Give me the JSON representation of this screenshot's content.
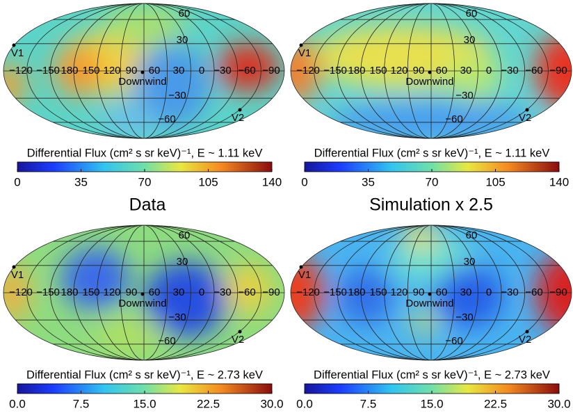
{
  "columns": [
    "Data",
    "Simulation x 2.5"
  ],
  "panels": [
    {
      "colorbar": {
        "label": "Differential Flux (cm² s sr keV)⁻¹, E ~ 1.11 keV",
        "lim": [
          0,
          140
        ],
        "ticks": [
          0,
          35,
          70,
          105,
          140
        ]
      },
      "markers": [
        "V1",
        "Downwind",
        "V2"
      ],
      "longitude_labels": [
        "−120",
        "−150",
        "180",
        "150",
        "120",
        "90",
        "60",
        "30",
        "0",
        "−30",
        "−60",
        "−90"
      ],
      "latitude_labels": [
        "60",
        "30",
        "−30",
        "−60"
      ]
    },
    {
      "colorbar": {
        "label": "Differential Flux (cm² s sr keV)⁻¹, E ~ 1.11 keV",
        "lim": [
          0,
          140
        ],
        "ticks": [
          0,
          35,
          70,
          105,
          140
        ]
      },
      "markers": [
        "V1",
        "Downwind",
        "V2"
      ],
      "longitude_labels": [
        "−120",
        "−150",
        "180",
        "150",
        "120",
        "90",
        "60",
        "30",
        "0",
        "−30",
        "−60",
        "−90"
      ],
      "latitude_labels": [
        "60",
        "30",
        "−30",
        "−60"
      ]
    },
    {
      "colorbar": {
        "label": "Differential Flux (cm² s sr keV)⁻¹, E ~ 2.73 keV",
        "lim": [
          0,
          30
        ],
        "ticks": [
          {
            "value": 0,
            "label": "0.0"
          },
          7.5,
          {
            "value": 15,
            "label": "15.0"
          },
          22.5,
          {
            "value": 30,
            "label": "30.0"
          }
        ]
      },
      "markers": [
        "V1",
        "Downwind",
        "V2"
      ],
      "longitude_labels": [
        "−120",
        "−150",
        "180",
        "150",
        "120",
        "90",
        "60",
        "30",
        "0",
        "−30",
        "−60",
        "−90"
      ],
      "latitude_labels": [
        "60",
        "30",
        "−30",
        "−60"
      ]
    },
    {
      "colorbar": {
        "label": "Differential Flux (cm² s sr keV)⁻¹, E ~ 2.73 keV",
        "lim": [
          0,
          30
        ],
        "ticks": [
          {
            "value": 0,
            "label": "0.0"
          },
          7.5,
          {
            "value": 15,
            "label": "15.0"
          },
          22.5,
          {
            "value": 30,
            "label": "30.0"
          }
        ]
      },
      "markers": [
        "V1",
        "Downwind",
        "V2"
      ],
      "longitude_labels": [
        "−120",
        "−150",
        "180",
        "150",
        "120",
        "90",
        "60",
        "30",
        "0",
        "−30",
        "−60",
        "−90"
      ],
      "latitude_labels": [
        "60",
        "30",
        "−30",
        "−60"
      ]
    }
  ]
}
